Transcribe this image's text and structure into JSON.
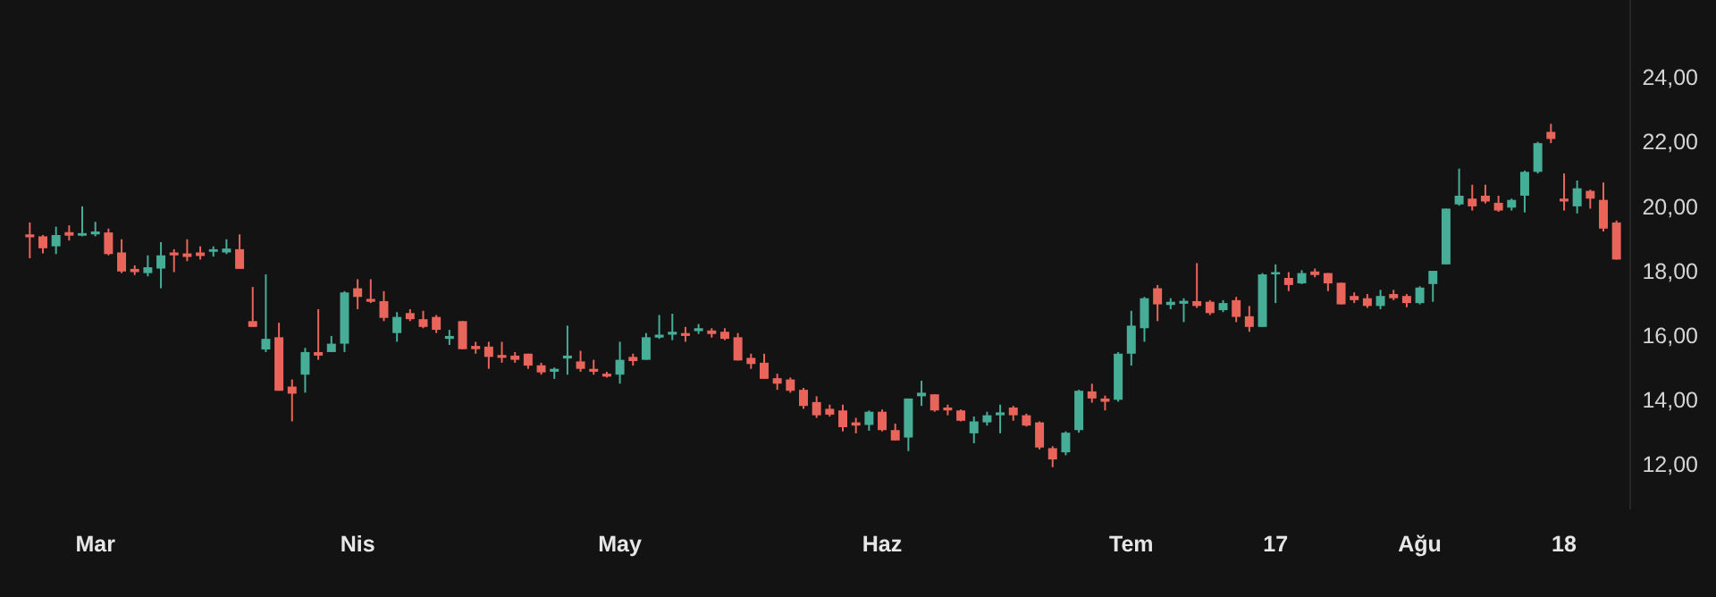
{
  "chart_data": {
    "type": "candlestick",
    "categories": [
      null,
      null,
      null,
      null,
      null,
      "Mar",
      null,
      null,
      null,
      null,
      null,
      null,
      null,
      null,
      null,
      null,
      null,
      null,
      null,
      null,
      null,
      null,
      null,
      null,
      null,
      "Nis",
      null,
      null,
      null,
      null,
      null,
      null,
      null,
      null,
      null,
      null,
      null,
      null,
      null,
      null,
      null,
      null,
      null,
      null,
      null,
      "May",
      null,
      null,
      null,
      null,
      null,
      null,
      null,
      null,
      null,
      null,
      null,
      null,
      null,
      null,
      null,
      null,
      null,
      null,
      null,
      "Haz",
      null,
      null,
      null,
      null,
      null,
      null,
      null,
      null,
      null,
      null,
      null,
      null,
      null,
      null,
      null,
      null,
      null,
      null,
      "Tem",
      null,
      null,
      null,
      null,
      null,
      null,
      null,
      null,
      null,
      null,
      "17",
      null,
      null,
      null,
      null,
      null,
      null,
      null,
      null,
      null,
      null,
      "Ağu",
      null,
      null,
      null,
      null,
      null,
      null,
      null,
      null,
      null,
      null,
      "18",
      null,
      null,
      null,
      null
    ],
    "ohlc": [
      [
        19.13,
        19.5,
        18.39,
        19.04
      ],
      [
        19.07,
        19.11,
        18.54,
        18.7
      ],
      [
        18.76,
        19.37,
        18.52,
        19.11
      ],
      [
        19.2,
        19.41,
        18.94,
        19.09
      ],
      [
        19.09,
        20.0,
        19.07,
        19.17
      ],
      [
        19.13,
        19.52,
        19.07,
        19.22
      ],
      [
        19.19,
        19.31,
        18.48,
        18.52
      ],
      [
        18.57,
        18.98,
        17.93,
        17.98
      ],
      [
        18.06,
        18.17,
        17.87,
        17.96
      ],
      [
        17.93,
        18.48,
        17.83,
        18.11
      ],
      [
        18.07,
        18.89,
        17.46,
        18.48
      ],
      [
        18.57,
        18.67,
        17.96,
        18.48
      ],
      [
        18.54,
        18.98,
        18.3,
        18.43
      ],
      [
        18.57,
        18.76,
        18.35,
        18.46
      ],
      [
        18.59,
        18.76,
        18.44,
        18.67
      ],
      [
        18.57,
        18.98,
        18.52,
        18.69
      ],
      [
        18.67,
        19.13,
        18.06,
        18.06
      ],
      [
        16.44,
        17.5,
        16.26,
        16.26
      ],
      [
        15.56,
        17.89,
        15.48,
        15.89
      ],
      [
        15.94,
        16.39,
        14.28,
        14.28
      ],
      [
        14.41,
        14.63,
        13.33,
        14.19
      ],
      [
        14.78,
        15.61,
        14.22,
        15.48
      ],
      [
        15.48,
        16.81,
        15.24,
        15.37
      ],
      [
        15.48,
        15.98,
        15.48,
        15.74
      ],
      [
        15.74,
        17.37,
        15.48,
        17.33
      ],
      [
        17.46,
        17.74,
        16.81,
        17.19
      ],
      [
        17.13,
        17.74,
        17.0,
        17.04
      ],
      [
        17.06,
        17.37,
        16.44,
        16.54
      ],
      [
        16.07,
        16.72,
        15.8,
        16.57
      ],
      [
        16.69,
        16.81,
        16.44,
        16.5
      ],
      [
        16.5,
        16.76,
        16.22,
        16.26
      ],
      [
        16.57,
        16.63,
        16.07,
        16.17
      ],
      [
        15.89,
        16.17,
        15.7,
        15.98
      ],
      [
        16.44,
        16.44,
        15.57,
        15.57
      ],
      [
        15.67,
        15.8,
        15.43,
        15.57
      ],
      [
        15.65,
        15.8,
        14.96,
        15.33
      ],
      [
        15.39,
        15.8,
        15.15,
        15.3
      ],
      [
        15.37,
        15.48,
        15.15,
        15.24
      ],
      [
        15.43,
        15.43,
        14.96,
        15.06
      ],
      [
        15.07,
        15.15,
        14.78,
        14.85
      ],
      [
        14.87,
        15.0,
        14.65,
        14.96
      ],
      [
        15.28,
        16.3,
        14.78,
        15.37
      ],
      [
        15.19,
        15.52,
        14.87,
        14.96
      ],
      [
        14.96,
        15.24,
        14.78,
        14.87
      ],
      [
        14.81,
        14.87,
        14.69,
        14.72
      ],
      [
        14.78,
        15.8,
        14.5,
        15.24
      ],
      [
        15.33,
        15.43,
        15.06,
        15.2
      ],
      [
        15.24,
        16.07,
        15.24,
        15.94
      ],
      [
        15.93,
        16.63,
        15.89,
        16.02
      ],
      [
        16.02,
        16.67,
        15.85,
        16.11
      ],
      [
        16.07,
        16.26,
        15.8,
        15.98
      ],
      [
        16.13,
        16.35,
        16.04,
        16.22
      ],
      [
        16.15,
        16.22,
        15.93,
        16.04
      ],
      [
        16.11,
        16.22,
        15.85,
        15.89
      ],
      [
        15.94,
        16.07,
        15.22,
        15.22
      ],
      [
        15.3,
        15.43,
        14.96,
        15.11
      ],
      [
        15.15,
        15.43,
        14.65,
        14.65
      ],
      [
        14.67,
        14.81,
        14.31,
        14.5
      ],
      [
        14.63,
        14.69,
        14.22,
        14.28
      ],
      [
        14.31,
        14.37,
        13.72,
        13.81
      ],
      [
        13.93,
        14.11,
        13.44,
        13.52
      ],
      [
        13.72,
        13.85,
        13.48,
        13.54
      ],
      [
        13.67,
        13.85,
        13.02,
        13.15
      ],
      [
        13.3,
        13.44,
        12.96,
        13.2
      ],
      [
        13.22,
        13.67,
        13.04,
        13.63
      ],
      [
        13.63,
        13.7,
        13.02,
        13.06
      ],
      [
        13.06,
        13.26,
        12.74,
        12.74
      ],
      [
        12.83,
        14.04,
        12.41,
        14.04
      ],
      [
        14.11,
        14.59,
        13.81,
        14.22
      ],
      [
        14.17,
        14.17,
        13.63,
        13.67
      ],
      [
        13.76,
        13.85,
        13.52,
        13.67
      ],
      [
        13.67,
        13.7,
        13.33,
        13.35
      ],
      [
        12.96,
        13.48,
        12.65,
        13.33
      ],
      [
        13.3,
        13.63,
        13.2,
        13.52
      ],
      [
        13.52,
        13.85,
        12.96,
        13.61
      ],
      [
        13.76,
        13.81,
        13.35,
        13.52
      ],
      [
        13.52,
        13.57,
        13.17,
        13.2
      ],
      [
        13.3,
        13.33,
        12.46,
        12.52
      ],
      [
        12.5,
        12.56,
        11.91,
        12.15
      ],
      [
        12.37,
        13.02,
        12.28,
        12.98
      ],
      [
        13.06,
        14.31,
        12.98,
        14.28
      ],
      [
        14.26,
        14.5,
        13.91,
        14.04
      ],
      [
        14.04,
        14.13,
        13.67,
        13.94
      ],
      [
        14.0,
        15.48,
        13.94,
        15.43
      ],
      [
        15.43,
        16.76,
        15.06,
        16.3
      ],
      [
        16.22,
        17.19,
        15.8,
        17.15
      ],
      [
        17.46,
        17.56,
        16.44,
        16.96
      ],
      [
        16.94,
        17.15,
        16.81,
        17.04
      ],
      [
        16.98,
        17.15,
        16.41,
        17.07
      ],
      [
        17.06,
        18.24,
        16.85,
        16.91
      ],
      [
        17.04,
        17.09,
        16.63,
        16.69
      ],
      [
        16.78,
        17.09,
        16.72,
        17.0
      ],
      [
        17.09,
        17.19,
        16.41,
        16.57
      ],
      [
        16.59,
        16.91,
        16.11,
        16.26
      ],
      [
        16.26,
        17.93,
        16.26,
        17.89
      ],
      [
        17.89,
        18.2,
        17.0,
        17.96
      ],
      [
        17.78,
        17.96,
        17.37,
        17.56
      ],
      [
        17.61,
        18.02,
        17.59,
        17.93
      ],
      [
        17.98,
        18.07,
        17.8,
        17.87
      ],
      [
        17.93,
        17.93,
        17.37,
        17.61
      ],
      [
        17.63,
        17.63,
        16.96,
        16.96
      ],
      [
        17.22,
        17.33,
        17.0,
        17.09
      ],
      [
        17.15,
        17.28,
        16.85,
        16.91
      ],
      [
        16.91,
        17.41,
        16.81,
        17.22
      ],
      [
        17.28,
        17.41,
        17.09,
        17.15
      ],
      [
        17.22,
        17.28,
        16.87,
        17.0
      ],
      [
        17.0,
        17.52,
        16.96,
        17.48
      ],
      [
        17.59,
        18.0,
        17.04,
        18.0
      ],
      [
        18.2,
        19.93,
        18.2,
        19.93
      ],
      [
        20.06,
        21.17,
        20.02,
        20.33
      ],
      [
        20.24,
        20.67,
        19.87,
        20.0
      ],
      [
        20.33,
        20.67,
        20.09,
        20.15
      ],
      [
        20.11,
        20.33,
        19.83,
        19.87
      ],
      [
        19.96,
        20.24,
        19.87,
        20.2
      ],
      [
        20.33,
        21.11,
        19.81,
        21.07
      ],
      [
        21.07,
        22.0,
        21.02,
        21.96
      ],
      [
        22.31,
        22.56,
        21.96,
        22.09
      ],
      [
        20.24,
        21.02,
        19.87,
        20.15
      ],
      [
        20.0,
        20.8,
        19.78,
        20.56
      ],
      [
        20.48,
        20.52,
        19.93,
        20.24
      ],
      [
        20.2,
        20.74,
        19.22,
        19.31
      ],
      [
        19.5,
        19.56,
        18.35,
        18.35
      ]
    ],
    "ylim": [
      10.6,
      26.4
    ],
    "yticks": [
      {
        "value": 12,
        "label": "12,00"
      },
      {
        "value": 14,
        "label": "14,00"
      },
      {
        "value": 16,
        "label": "16,00"
      },
      {
        "value": 18,
        "label": "18,00"
      },
      {
        "value": 20,
        "label": "20,00"
      },
      {
        "value": 22,
        "label": "22,00"
      },
      {
        "value": 24,
        "label": "24,00"
      }
    ]
  }
}
